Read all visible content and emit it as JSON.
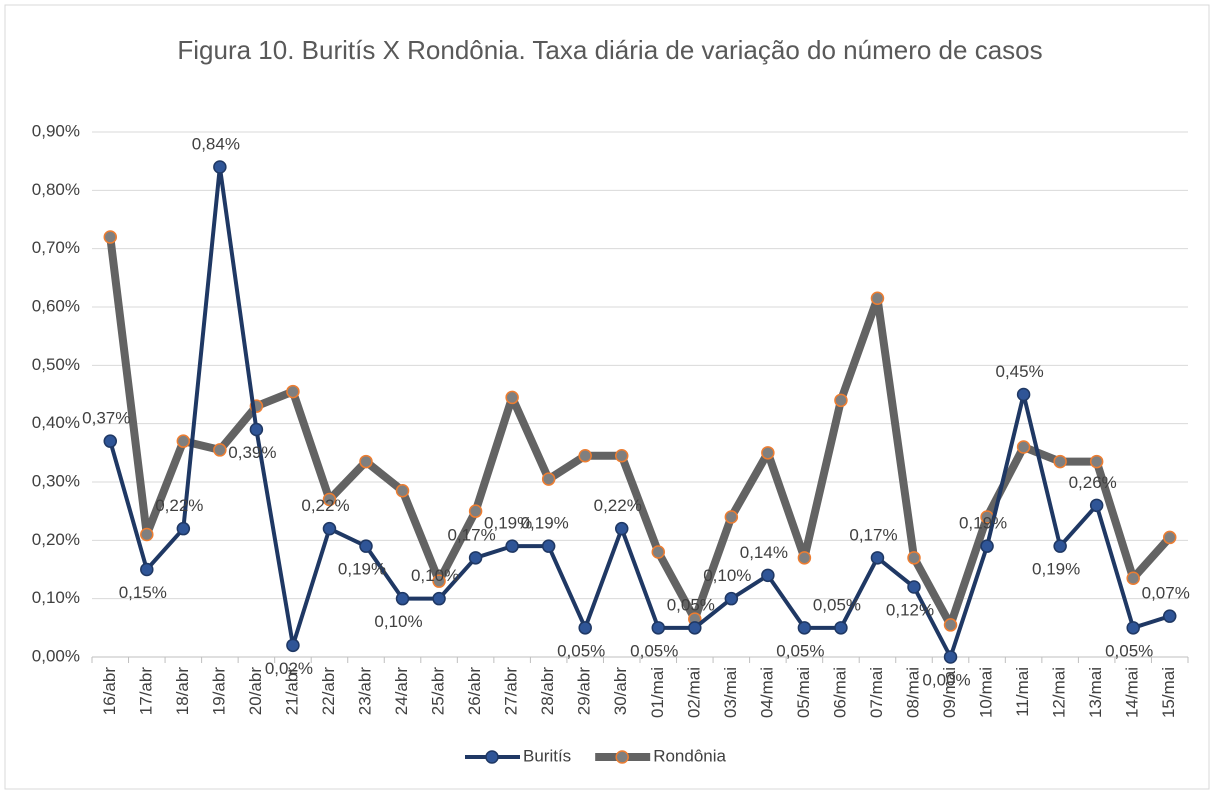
{
  "chart_data": {
    "type": "line",
    "title": "Figura 10. Buritís X Rondônia. Taxa diária de variação do número de casos",
    "categories": [
      "16/abr",
      "17/abr",
      "18/abr",
      "19/abr",
      "20/abr",
      "21/abr",
      "22/abr",
      "23/abr",
      "24/abr",
      "25/abr",
      "26/abr",
      "27/abr",
      "28/abr",
      "29/abr",
      "30/abr",
      "01/mai",
      "02/mai",
      "03/mai",
      "04/mai",
      "05/mai",
      "06/mai",
      "07/mai",
      "08/mai",
      "09/mai",
      "10/mai",
      "11/mai",
      "12/mai",
      "13/mai",
      "14/mai",
      "15/mai"
    ],
    "series": [
      {
        "name": "Buritís",
        "color": "#1f3864",
        "marker_color": "#2f5597",
        "values": [
          0.37,
          0.15,
          0.22,
          0.84,
          0.39,
          0.02,
          0.22,
          0.19,
          0.1,
          0.1,
          0.17,
          0.19,
          0.19,
          0.05,
          0.22,
          0.05,
          0.05,
          0.1,
          0.14,
          0.05,
          0.05,
          0.17,
          0.12,
          0.0,
          0.19,
          0.45,
          0.19,
          0.26,
          0.05,
          0.07
        ],
        "value_labels": [
          "0,37%",
          "0,15%",
          "0,22%",
          "0,84%",
          "0,39%",
          "0,02%",
          "0,22%",
          "0,19%",
          "0,10%",
          "0,10%",
          "0,17%",
          "0,19%",
          "0,19%",
          "0,05%",
          "0,22%",
          "0,05%",
          "0,05%",
          "0,10%",
          "0,14%",
          "0,05%",
          "0,05%",
          "0,17%",
          "0,12%",
          "0,00%",
          "0,19%",
          "0,45%",
          "0,19%",
          "0,26%",
          "0,05%",
          "0,07%"
        ]
      },
      {
        "name": "Rondônia",
        "color": "#636363",
        "marker_color": "#ed7d31",
        "values": [
          0.72,
          0.21,
          0.37,
          0.355,
          0.43,
          0.455,
          0.27,
          0.335,
          0.285,
          0.13,
          0.25,
          0.445,
          0.305,
          0.345,
          0.345,
          0.18,
          0.065,
          0.24,
          0.35,
          0.17,
          0.44,
          0.615,
          0.17,
          0.055,
          0.24,
          0.36,
          0.335,
          0.335,
          0.135,
          0.205
        ]
      }
    ],
    "ylim": [
      0,
      0.9
    ],
    "yticks": [
      {
        "value": 0,
        "label": "0,00%"
      },
      {
        "value": 0.1,
        "label": "0,10%"
      },
      {
        "value": 0.2,
        "label": "0,20%"
      },
      {
        "value": 0.3,
        "label": "0,30%"
      },
      {
        "value": 0.4,
        "label": "0,40%"
      },
      {
        "value": 0.5,
        "label": "0,50%"
      },
      {
        "value": 0.6,
        "label": "0,60%"
      },
      {
        "value": 0.7,
        "label": "0,70%"
      },
      {
        "value": 0.8,
        "label": "0,80%"
      },
      {
        "value": 0.9,
        "label": "0,90%"
      }
    ],
    "grid": true,
    "legend": "bottom"
  }
}
